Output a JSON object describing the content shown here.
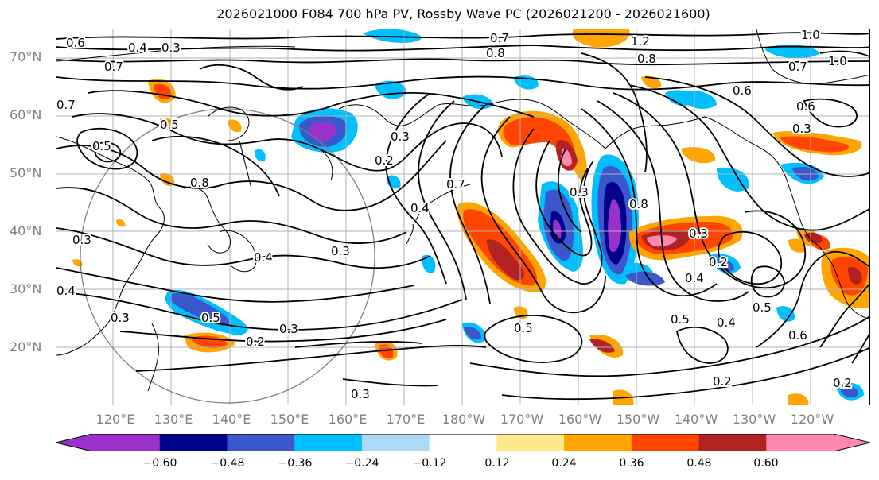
{
  "title": "2026021000 F084 700 hPa PV, Rossby Wave PC (2026021200 - 2026021600)",
  "lat_labels": [
    "70°N",
    "60°N",
    "50°N",
    "40°N",
    "30°N",
    "20°N"
  ],
  "lon_labels": [
    "120°E",
    "130°E",
    "140°E",
    "150°E",
    "160°E",
    "170°E",
    "180°W",
    "170°W",
    "160°W",
    "150°W",
    "140°W",
    "130°W",
    "120°W"
  ],
  "colorbar": {
    "ticks": [
      "−0.60",
      "−0.48",
      "−0.36",
      "−0.24",
      "−0.12",
      "0.12",
      "0.24",
      "0.36",
      "0.48",
      "0.60"
    ],
    "colors": [
      "#9932cc",
      "#00008b",
      "#3a57cc",
      "#00bfff",
      "#add8f6",
      "#ffffff",
      "#ffe98a",
      "#ffa500",
      "#ff4500",
      "#b22222",
      "#ff88b0"
    ]
  },
  "contour_labels": [
    "0.6",
    "0.4",
    "0.3",
    "0.7",
    "0.8",
    "0.7",
    "1.2",
    "1.0",
    "1.0",
    "0.8",
    "0.7",
    "0.6",
    "0.6",
    "0.3",
    "0.5",
    "0.8",
    "0.2",
    "0.3",
    "0.4",
    "0.7",
    "0.3",
    "0.8",
    "0.3",
    "0.2",
    "0.4",
    "0.3",
    "0.4",
    "0.5",
    "0.3",
    "0.2",
    "0.5",
    "0.3",
    "0.5",
    "0.4",
    "0.5",
    "0.6",
    "0.2",
    "0.2",
    "0.3",
    "0.5",
    "0.4",
    "0.3",
    "0.7"
  ]
}
